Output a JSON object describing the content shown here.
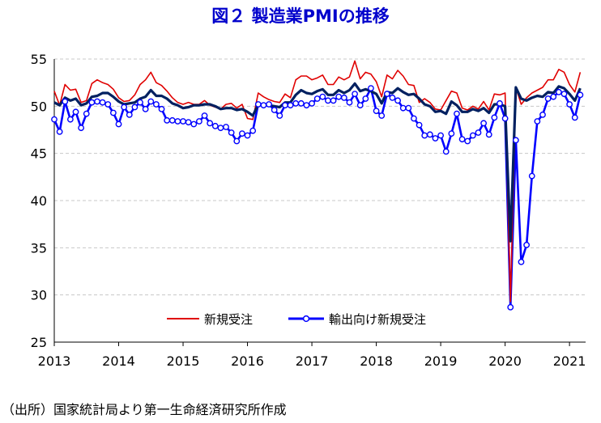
{
  "title": "図２ 製造業PMIの推移",
  "source_note": "（出所）国家統計局より第一生命経済研究所作成",
  "chart_data": {
    "type": "line",
    "title": "図２ 製造業PMIの推移",
    "xlabel": "",
    "ylabel": "",
    "ylim": [
      25,
      55
    ],
    "yticks": [
      25,
      30,
      35,
      40,
      45,
      50,
      55
    ],
    "xlim": [
      2013,
      2021.25
    ],
    "xtick_labels": [
      "2013",
      "2014",
      "2015",
      "2016",
      "2017",
      "2018",
      "2019",
      "2020",
      "2021"
    ],
    "grid": "horizontal-dashed",
    "legend_position": "bottom-center",
    "series": [
      {
        "name": "",
        "color": "#002060",
        "marker": "none",
        "values": [
          50.4,
          50.1,
          50.9,
          50.6,
          50.8,
          50.1,
          50.3,
          51.0,
          51.1,
          51.4,
          51.4,
          51.0,
          50.5,
          50.2,
          50.3,
          50.4,
          50.8,
          51.0,
          51.7,
          51.1,
          51.1,
          50.8,
          50.3,
          50.1,
          49.8,
          49.9,
          50.1,
          50.1,
          50.2,
          50.2,
          50.0,
          49.7,
          49.8,
          49.8,
          49.6,
          49.7,
          49.4,
          49.0,
          50.2,
          50.1,
          50.1,
          50.0,
          49.9,
          50.4,
          50.4,
          51.2,
          51.7,
          51.4,
          51.3,
          51.6,
          51.8,
          51.2,
          51.2,
          51.7,
          51.4,
          51.7,
          52.4,
          51.6,
          51.8,
          51.6,
          51.3,
          50.3,
          51.5,
          51.4,
          51.9,
          51.5,
          51.2,
          51.3,
          50.8,
          50.2,
          50.0,
          49.4,
          49.5,
          49.2,
          50.5,
          50.1,
          49.4,
          49.4,
          49.7,
          49.5,
          49.8,
          49.3,
          50.2,
          50.2,
          50.0,
          35.7,
          52.0,
          50.8,
          50.6,
          50.9,
          51.1,
          51.0,
          51.5,
          51.4,
          52.1,
          51.9,
          51.3,
          50.6,
          51.9
        ]
      },
      {
        "name": "新規受注",
        "color": "#e00000",
        "marker": "none",
        "values": [
          51.6,
          50.1,
          52.3,
          51.7,
          51.8,
          50.4,
          50.6,
          52.4,
          52.8,
          52.5,
          52.3,
          51.8,
          50.9,
          50.5,
          50.6,
          51.2,
          52.3,
          52.8,
          53.6,
          52.5,
          52.2,
          51.6,
          50.9,
          50.4,
          50.2,
          50.4,
          50.2,
          50.2,
          50.6,
          50.1,
          49.9,
          49.7,
          50.2,
          50.3,
          49.8,
          50.2,
          48.7,
          48.6,
          51.4,
          51.0,
          50.7,
          50.5,
          50.4,
          51.3,
          50.9,
          52.8,
          53.2,
          53.2,
          52.8,
          53.0,
          53.3,
          52.3,
          52.3,
          53.1,
          52.8,
          53.1,
          54.8,
          52.9,
          53.6,
          53.4,
          52.6,
          51.0,
          53.3,
          52.9,
          53.8,
          53.2,
          52.3,
          52.2,
          50.4,
          50.8,
          50.4,
          49.7,
          49.6,
          50.6,
          51.6,
          51.4,
          49.8,
          49.6,
          50.0,
          49.7,
          50.5,
          49.6,
          51.3,
          51.2,
          51.4,
          29.3,
          52.0,
          50.2,
          50.9,
          51.4,
          51.7,
          52.0,
          52.8,
          52.8,
          53.9,
          53.6,
          52.3,
          51.5,
          53.6
        ]
      },
      {
        "name": "輸出向け新規受注",
        "color": "#0000ff",
        "marker": "circle-open",
        "values": [
          48.6,
          47.3,
          50.5,
          48.6,
          49.4,
          47.7,
          49.2,
          50.4,
          50.5,
          50.4,
          50.2,
          49.3,
          48.1,
          49.9,
          49.1,
          49.9,
          50.4,
          49.7,
          50.5,
          50.2,
          49.7,
          48.5,
          48.5,
          48.4,
          48.4,
          48.3,
          48.1,
          48.4,
          49.0,
          48.2,
          47.9,
          47.7,
          47.8,
          47.2,
          46.3,
          47.1,
          46.9,
          47.4,
          50.2,
          50.1,
          50.2,
          49.6,
          49.0,
          50.1,
          50.1,
          50.3,
          50.3,
          50.1,
          50.3,
          50.8,
          51.0,
          50.6,
          50.6,
          51.0,
          50.9,
          50.4,
          51.3,
          50.1,
          50.8,
          51.9,
          49.5,
          49.0,
          51.3,
          50.9,
          50.6,
          49.8,
          49.8,
          48.7,
          48.0,
          46.9,
          47.0,
          46.6,
          46.9,
          45.2,
          47.1,
          49.2,
          46.5,
          46.3,
          46.9,
          47.2,
          48.2,
          47.0,
          48.8,
          50.3,
          48.7,
          28.7,
          46.4,
          33.5,
          35.3,
          42.6,
          48.4,
          49.1,
          50.8,
          51.0,
          51.5,
          51.3,
          50.2,
          48.8,
          51.2
        ]
      }
    ],
    "x_start": 2013,
    "x_step_months": 1
  }
}
